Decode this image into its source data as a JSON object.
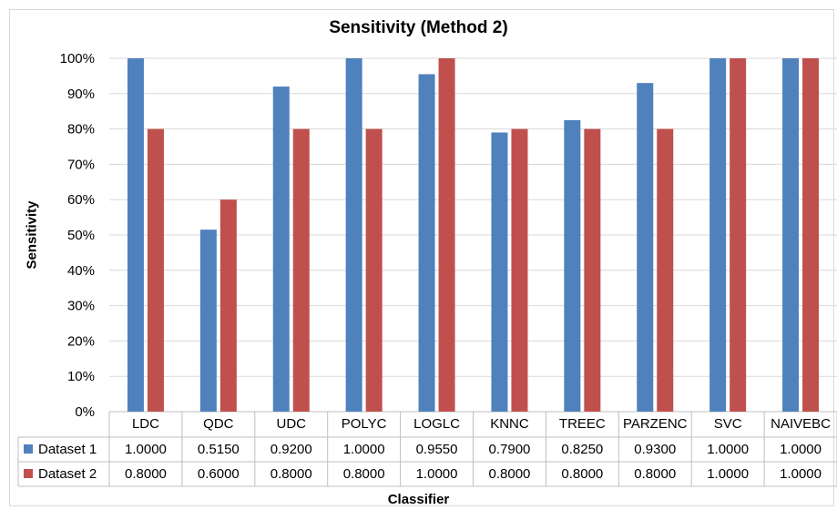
{
  "chart_data": {
    "type": "bar",
    "title": "Sensitivity (Method 2)",
    "xlabel": "Classifier",
    "ylabel": "Sensitivity",
    "ylim": [
      0,
      1
    ],
    "yticks": [
      "0%",
      "10%",
      "20%",
      "30%",
      "40%",
      "50%",
      "60%",
      "70%",
      "80%",
      "90%",
      "100%"
    ],
    "categories": [
      "LDC",
      "QDC",
      "UDC",
      "POLYC",
      "LOGLC",
      "KNNC",
      "TREEC",
      "PARZENC",
      "SVC",
      "NAIVEBC"
    ],
    "series": [
      {
        "name": "Dataset 1",
        "color": "#4f81bd",
        "values": [
          1.0,
          0.515,
          0.92,
          1.0,
          0.955,
          0.79,
          0.825,
          0.93,
          1.0,
          1.0
        ],
        "labels": [
          "1.0000",
          "0.5150",
          "0.9200",
          "1.0000",
          "0.9550",
          "0.7900",
          "0.8250",
          "0.9300",
          "1.0000",
          "1.0000"
        ]
      },
      {
        "name": "Dataset 2",
        "color": "#c0504d",
        "values": [
          0.8,
          0.6,
          0.8,
          0.8,
          1.0,
          0.8,
          0.8,
          0.8,
          1.0,
          1.0
        ],
        "labels": [
          "0.8000",
          "0.6000",
          "0.8000",
          "0.8000",
          "1.0000",
          "0.8000",
          "0.8000",
          "0.8000",
          "1.0000",
          "1.0000"
        ]
      }
    ],
    "grid": true,
    "legend": "data-table"
  }
}
